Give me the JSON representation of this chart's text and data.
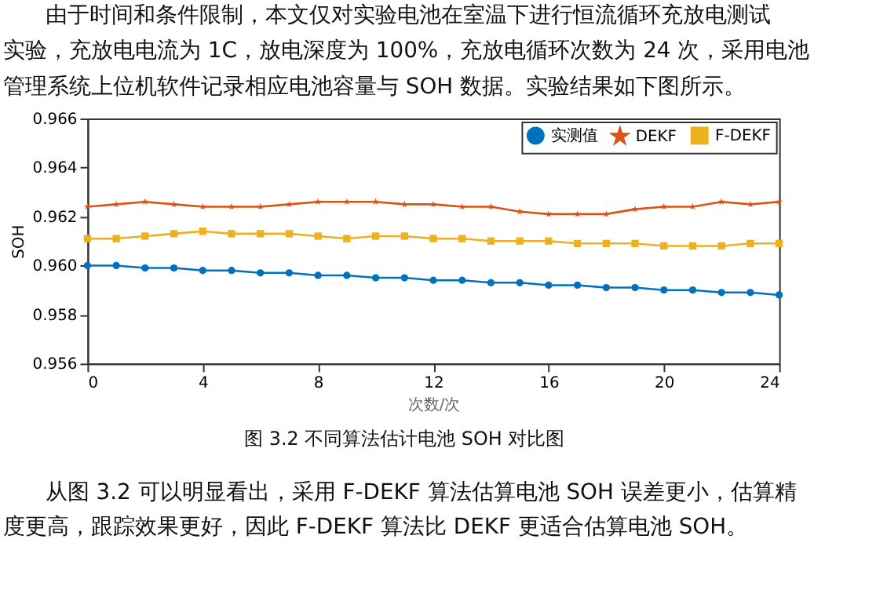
{
  "chart_data": {
    "type": "line",
    "title": "图 3.2   不同算法估计电池 SOH 对比图",
    "xlabel": "次数/次",
    "ylabel": "SOH",
    "x": [
      0,
      1,
      2,
      3,
      4,
      5,
      6,
      7,
      8,
      9,
      10,
      11,
      12,
      13,
      14,
      15,
      16,
      17,
      18,
      19,
      20,
      21,
      22,
      23,
      24
    ],
    "series": [
      {
        "name": "实测值",
        "color": "#0072bd",
        "marker": "circle",
        "values": [
          0.96,
          0.96,
          0.9599,
          0.9599,
          0.9598,
          0.9598,
          0.9597,
          0.9597,
          0.9596,
          0.9596,
          0.9595,
          0.9595,
          0.9594,
          0.9594,
          0.9593,
          0.9593,
          0.9592,
          0.9592,
          0.9591,
          0.9591,
          0.959,
          0.959,
          0.9589,
          0.9589,
          0.9588
        ]
      },
      {
        "name": "DEKF",
        "color": "#d95319",
        "marker": "star",
        "values": [
          0.9624,
          0.9625,
          0.9626,
          0.9625,
          0.9624,
          0.9624,
          0.9624,
          0.9625,
          0.9626,
          0.9626,
          0.9626,
          0.9625,
          0.9625,
          0.9624,
          0.9624,
          0.9622,
          0.9621,
          0.9621,
          0.9621,
          0.9623,
          0.9624,
          0.9624,
          0.9626,
          0.9625,
          0.9626
        ]
      },
      {
        "name": "F-DEKF",
        "color": "#edb120",
        "marker": "square",
        "values": [
          0.9611,
          0.9611,
          0.9612,
          0.9613,
          0.9614,
          0.9613,
          0.9613,
          0.9613,
          0.9612,
          0.9611,
          0.9612,
          0.9612,
          0.9611,
          0.9611,
          0.961,
          0.961,
          0.961,
          0.9609,
          0.9609,
          0.9609,
          0.9608,
          0.9608,
          0.9608,
          0.9609,
          0.9609
        ]
      }
    ],
    "xlim": [
      0,
      24
    ],
    "xticks": [
      0,
      4,
      8,
      12,
      16,
      20,
      24
    ],
    "ylim": [
      0.956,
      0.966
    ],
    "yticks": [
      0.956,
      0.958,
      {
        "value": 0.96,
        "label": "0.960"
      },
      0.962,
      0.964,
      0.966
    ],
    "grid": false,
    "legend": "top right",
    "line_style": "solid",
    "annotations": [
      "由于时间和条件限制，本文仅对实验电池在室温下进行恒流循环充放电测试",
      "实验，充放电电流为 1C，放电深度为 100%，充放电循环次数为 24 次，采用电池",
      "管理系统上位机软件记录相应电池容量与 SOH 数据。实验结果如下图所示。",
      "从图 3.2 可以明显看出，采用 F-DEKF 算法估算电池 SOH 误差更小，估算精",
      "度更高，跟踪效果更好，因此 F-DEKF 算法比 DEKF 更适合估算电池 SOH。"
    ]
  }
}
